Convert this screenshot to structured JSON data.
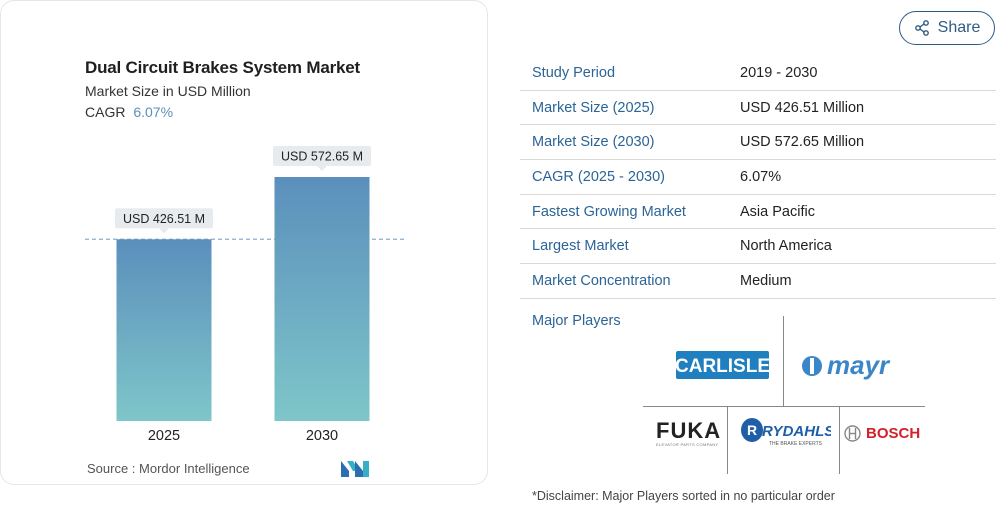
{
  "chart_data": {
    "type": "bar",
    "title": "Dual Circuit Brakes System Market",
    "subtitle": "Market Size in USD Million",
    "cagr_label": "CAGR",
    "cagr_value": "6.07%",
    "categories": [
      "2025",
      "2030"
    ],
    "values": [
      426.51,
      572.65
    ],
    "value_labels": [
      "USD 426.51 M",
      "USD 572.65 M"
    ],
    "ylim": [
      0,
      572.65
    ],
    "reference_line_value": 426.51,
    "bar_gradient": [
      "#5b8fbc",
      "#7ec6c9"
    ],
    "grid": false
  },
  "source": "Source :  Mordor Intelligence",
  "share_label": "Share",
  "info_table": [
    {
      "label": "Study Period",
      "value": "2019 - 2030"
    },
    {
      "label": "Market Size (2025)",
      "value": "USD 426.51 Million"
    },
    {
      "label": "Market Size (2030)",
      "value": "USD 572.65 Million"
    },
    {
      "label": "CAGR (2025 - 2030)",
      "value": "6.07%"
    },
    {
      "label": "Fastest Growing Market",
      "value": "Asia Pacific"
    },
    {
      "label": "Largest Market",
      "value": "North America"
    },
    {
      "label": "Market Concentration",
      "value": "Medium"
    }
  ],
  "major_players_label": "Major Players",
  "players": {
    "carlisle": "CARLISLE",
    "mayr": "mayr",
    "fuka": "FUKA",
    "fuka_sub": "ELEVATOR PARTS COMPANY",
    "rydahls": "RYDAHLS",
    "rydahls_sub": "THE BRAKE EXPERTS",
    "bosch": "BOSCH"
  },
  "disclaimer": "*Disclaimer: Major Players sorted in no particular order",
  "colors": {
    "accent": "#2b6496",
    "cagr": "#5b8fb9",
    "bosch_red": "#d3202a",
    "mayr_blue": "#3a86c8"
  }
}
